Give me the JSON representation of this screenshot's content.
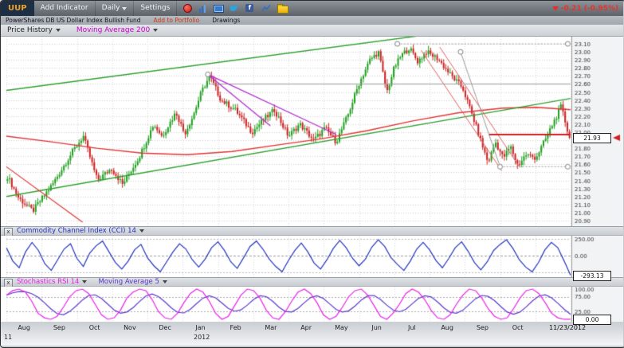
{
  "toolbar": {
    "symbol": "UUP",
    "add_indicator_label": "Add Indicator",
    "timeframe_value": "Daily",
    "settings_label": "Settings",
    "change_text": "-0.21 (-0.95%)",
    "change_color": "#e03030",
    "facebook_glyph": "f",
    "icon_names": [
      "record-icon",
      "bar-chart-icon",
      "screen-share-icon",
      "twitter-icon",
      "facebook-icon",
      "line-chart-icon",
      "folder-icon"
    ]
  },
  "subtoolbar": {
    "fund_name": "PowerShares DB US Dollar Index Bullish Fund",
    "add_to_portfolio_label": "Add to Portfolio",
    "drawings_label": "Drawings"
  },
  "price_panel": {
    "legend": [
      {
        "label": "Price History",
        "color": "#222222"
      },
      {
        "label": "Moving Average 200",
        "color": "#cc00cc"
      }
    ],
    "current_price": "21.93"
  },
  "cci_panel": {
    "close_glyph": "x",
    "title": "Commodity Channel Index (CCI) 14",
    "title_color": "#2233bb",
    "current_value": "-293.13"
  },
  "stoch_panel": {
    "close_glyph": "x",
    "title": "Stochastics RSI 14",
    "title_color": "#e820e8",
    "ma_label": "Moving Average 5",
    "ma_color": "#5a35cc",
    "current_value": "0.00"
  },
  "time_axis": {
    "year_label": "2012",
    "left_year_label": "11",
    "date_label": "11/23/2012"
  },
  "chart_data": [
    {
      "type": "candlestick",
      "title": "UUP Price History, Daily (Aug 2011 - Nov 23 2012)",
      "ylim": [
        20.83,
        23.19
      ],
      "yticks": [
        23.1,
        23.0,
        22.9,
        22.8,
        22.7,
        22.6,
        22.5,
        22.4,
        22.3,
        22.2,
        22.1,
        22.0,
        21.9,
        21.8,
        21.7,
        21.6,
        21.5,
        21.4,
        21.3,
        21.2,
        21.1,
        21.0,
        20.9
      ],
      "months": [
        "Aug",
        "Sep",
        "Oct",
        "Nov",
        "Dec",
        "Jan",
        "Feb",
        "Mar",
        "Apr",
        "May",
        "Jun",
        "Jul",
        "Aug",
        "Sep",
        "Oct"
      ],
      "x_span_months": 16,
      "up_color": "#1f9e1f",
      "down_color": "#cc2222",
      "last_close": 21.93,
      "anchors": [
        [
          0,
          21.45
        ],
        [
          0.02,
          21.18
        ],
        [
          0.045,
          21.02
        ],
        [
          0.08,
          21.35
        ],
        [
          0.115,
          21.75
        ],
        [
          0.135,
          21.95
        ],
        [
          0.16,
          21.4
        ],
        [
          0.185,
          21.55
        ],
        [
          0.205,
          21.35
        ],
        [
          0.235,
          21.7
        ],
        [
          0.26,
          22.1
        ],
        [
          0.275,
          21.95
        ],
        [
          0.3,
          22.25
        ],
        [
          0.315,
          21.98
        ],
        [
          0.33,
          22.2
        ],
        [
          0.345,
          22.5
        ],
        [
          0.36,
          22.7
        ],
        [
          0.38,
          22.4
        ],
        [
          0.405,
          22.28
        ],
        [
          0.435,
          22.0
        ],
        [
          0.455,
          22.15
        ],
        [
          0.475,
          22.28
        ],
        [
          0.5,
          21.95
        ],
        [
          0.52,
          22.1
        ],
        [
          0.545,
          21.9
        ],
        [
          0.565,
          22.05
        ],
        [
          0.585,
          21.88
        ],
        [
          0.605,
          22.2
        ],
        [
          0.625,
          22.6
        ],
        [
          0.645,
          22.9
        ],
        [
          0.66,
          23.0
        ],
        [
          0.675,
          22.5
        ],
        [
          0.688,
          22.8
        ],
        [
          0.7,
          22.95
        ],
        [
          0.715,
          23.05
        ],
        [
          0.73,
          22.88
        ],
        [
          0.745,
          23.0
        ],
        [
          0.765,
          22.92
        ],
        [
          0.79,
          22.7
        ],
        [
          0.81,
          22.55
        ],
        [
          0.83,
          22.15
        ],
        [
          0.855,
          21.62
        ],
        [
          0.868,
          21.88
        ],
        [
          0.882,
          21.68
        ],
        [
          0.895,
          21.82
        ],
        [
          0.908,
          21.58
        ],
        [
          0.922,
          21.72
        ],
        [
          0.94,
          21.68
        ],
        [
          0.955,
          21.88
        ],
        [
          0.97,
          22.1
        ],
        [
          0.985,
          22.32
        ],
        [
          1,
          21.93
        ]
      ],
      "ma200": {
        "color": "#e03535",
        "points": [
          [
            0,
            21.95
          ],
          [
            0.08,
            21.88
          ],
          [
            0.16,
            21.8
          ],
          [
            0.24,
            21.74
          ],
          [
            0.32,
            21.72
          ],
          [
            0.4,
            21.76
          ],
          [
            0.48,
            21.84
          ],
          [
            0.56,
            21.92
          ],
          [
            0.64,
            22.02
          ],
          [
            0.72,
            22.14
          ],
          [
            0.8,
            22.24
          ],
          [
            0.88,
            22.3
          ],
          [
            0.94,
            22.31
          ],
          [
            1,
            22.28
          ]
        ]
      },
      "drawings": [
        {
          "pts": [
            0,
            21.2,
            1,
            22.42
          ],
          "color": "#2e9e2e",
          "w": 1.4
        },
        {
          "pts": [
            0,
            22.52,
            1,
            23.45
          ],
          "color": "#2e9e2e",
          "w": 1.4
        },
        {
          "pts": [
            0,
            21.57,
            0.135,
            20.88
          ],
          "color": "#dd3333",
          "w": 1.2
        },
        {
          "pts": [
            0.735,
            23.02,
            0.878,
            21.52
          ],
          "color": "#e06060",
          "w": 1
        },
        {
          "pts": [
            0.768,
            23.06,
            0.91,
            21.56
          ],
          "color": "#e06060",
          "w": 1
        },
        {
          "pts": [
            0.855,
            21.97,
            1,
            21.97
          ],
          "color": "#cc2222",
          "w": 2
        },
        {
          "pts": [
            0.693,
            23.1,
            0.995,
            23.1
          ],
          "color": "#999999",
          "w": 1,
          "dash": [
            2,
            2
          ]
        },
        {
          "pts": [
            0.805,
            23.0,
            0.875,
            21.57
          ],
          "color": "#999999",
          "w": 1
        },
        {
          "pts": [
            0.875,
            21.57,
            0.995,
            21.57
          ],
          "color": "#999999",
          "w": 1,
          "dash": [
            2,
            2
          ]
        },
        {
          "pts": [
            0.362,
            22.6,
            1,
            22.6
          ],
          "color": "#9a9a9a",
          "w": 1
        },
        {
          "pts": [
            0.357,
            22.72,
            0.585,
            21.97
          ],
          "color": "#b030d0",
          "w": 1.3
        },
        {
          "pts": [
            0.357,
            22.72,
            0.468,
            22.08
          ],
          "color": "#b030d0",
          "w": 1.3
        }
      ],
      "handles": [
        [
          0.357,
          22.72
        ],
        [
          0.693,
          23.1
        ],
        [
          0.805,
          23.0
        ],
        [
          0.875,
          21.57
        ],
        [
          0.995,
          23.1
        ],
        [
          0.995,
          21.57
        ]
      ]
    },
    {
      "type": "line",
      "title": "Commodity Channel Index (CCI) 14",
      "color": "#2233bb",
      "ylim": [
        -320,
        300
      ],
      "grid_levels": [
        250,
        0,
        -250
      ],
      "ytick_labels": [
        250,
        0
      ],
      "current": -293.13,
      "values": [
        120,
        -80,
        -180,
        60,
        200,
        80,
        -120,
        -220,
        -60,
        100,
        180,
        -40,
        -160,
        40,
        150,
        220,
        60,
        -100,
        -200,
        -80,
        90,
        170,
        -30,
        -150,
        -240,
        -90,
        60,
        180,
        100,
        -60,
        -170,
        -50,
        120,
        210,
        80,
        -90,
        -190,
        -30,
        140,
        220,
        100,
        -50,
        -160,
        -240,
        -70,
        80,
        190,
        60,
        -110,
        -200,
        -60,
        110,
        230,
        120,
        -40,
        -150,
        -50,
        130,
        240,
        140,
        -30,
        -130,
        -220,
        -80,
        100,
        200,
        90,
        -70,
        -180,
        -40,
        120,
        210,
        70,
        -100,
        -210,
        -90,
        80,
        170,
        240,
        110,
        -60,
        -170,
        -240,
        -100,
        90,
        200,
        120,
        -80,
        -293.13
      ]
    },
    {
      "type": "line",
      "title": "Stochastics RSI 14 with Moving Average 5",
      "ylim": [
        -8,
        108
      ],
      "grid_levels": [
        75,
        25
      ],
      "ytick_labels": [
        100,
        75,
        25
      ],
      "current": 0,
      "series": [
        {
          "name": "Stochastics RSI 14",
          "color": "#e820e8",
          "values": [
            80,
            95,
            100,
            90,
            60,
            20,
            5,
            0,
            10,
            40,
            75,
            95,
            100,
            85,
            50,
            15,
            0,
            5,
            30,
            70,
            90,
            100,
            95,
            65,
            25,
            5,
            0,
            20,
            55,
            85,
            100,
            90,
            60,
            20,
            0,
            10,
            45,
            80,
            100,
            95,
            70,
            30,
            5,
            0,
            25,
            60,
            90,
            100,
            85,
            55,
            15,
            0,
            10,
            40,
            75,
            95,
            100,
            80,
            45,
            10,
            0,
            20,
            50,
            85,
            100,
            90,
            65,
            30,
            5,
            0,
            15,
            50,
            80,
            100,
            95,
            70,
            35,
            10,
            0,
            5,
            35,
            70,
            95,
            100,
            85,
            55,
            20,
            5,
            0,
            0
          ]
        },
        {
          "name": "Moving Average 5",
          "color": "#5a35cc",
          "derived": "sma5_of_first_series"
        }
      ]
    }
  ]
}
